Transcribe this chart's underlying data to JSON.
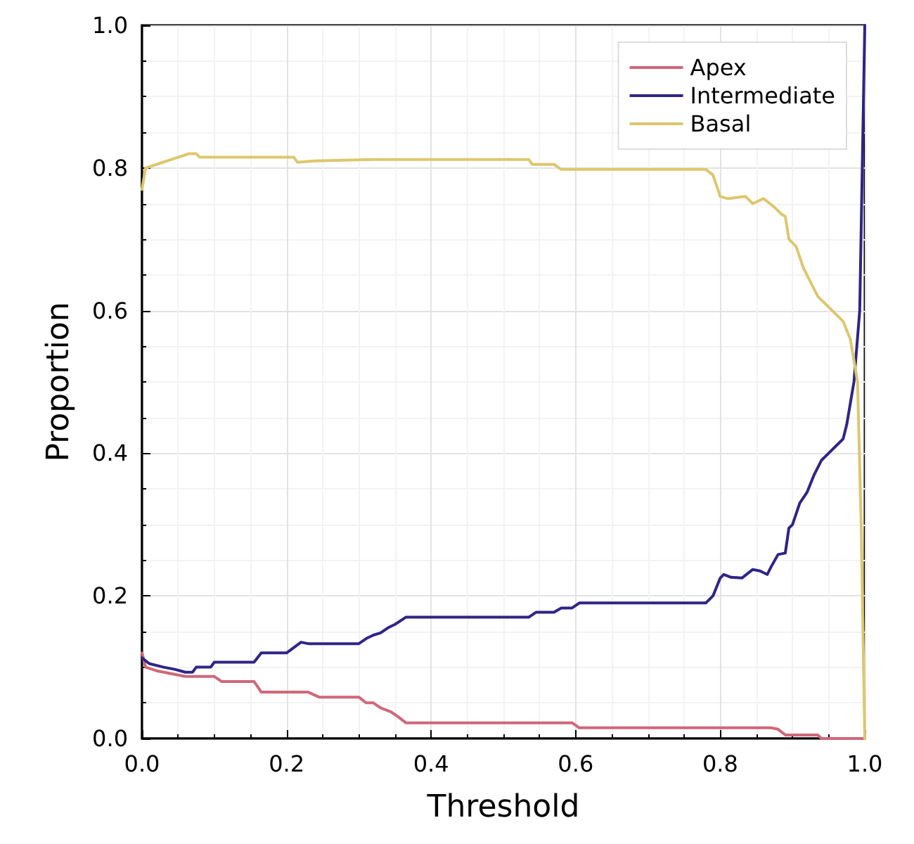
{
  "chart_data": {
    "type": "line",
    "xlabel": "Threshold",
    "ylabel": "Proportion",
    "xlim": [
      0,
      1
    ],
    "ylim": [
      0,
      1
    ],
    "xticks": [
      {
        "value": 0,
        "label": "0.0"
      },
      {
        "value": 0.2,
        "label": "0.2"
      },
      {
        "value": 0.4,
        "label": "0.4"
      },
      {
        "value": 0.6,
        "label": "0.6"
      },
      {
        "value": 0.8,
        "label": "0.8"
      },
      {
        "value": 1,
        "label": "1.0"
      }
    ],
    "yticks": [
      {
        "value": 0,
        "label": "0.0"
      },
      {
        "value": 0.2,
        "label": "0.2"
      },
      {
        "value": 0.4,
        "label": "0.4"
      },
      {
        "value": 0.6,
        "label": "0.6"
      },
      {
        "value": 0.8,
        "label": "0.8"
      },
      {
        "value": 1,
        "label": "1.0"
      }
    ],
    "grid": true,
    "legend": "top right",
    "line_style": "solid",
    "marker": "none",
    "series": [
      {
        "name": "Apex",
        "color": "#d0677a",
        "x": [
          0,
          0.005,
          0.02,
          0.03,
          0.045,
          0.06,
          0.1,
          0.11,
          0.155,
          0.165,
          0.23,
          0.245,
          0.3,
          0.31,
          0.32,
          0.33,
          0.345,
          0.355,
          0.365,
          0.595,
          0.605,
          0.87,
          0.88,
          0.89,
          0.935,
          0.94,
          1
        ],
        "values": [
          0.12,
          0.1,
          0.095,
          0.093,
          0.09,
          0.087,
          0.087,
          0.08,
          0.08,
          0.065,
          0.065,
          0.058,
          0.058,
          0.05,
          0.05,
          0.043,
          0.037,
          0.03,
          0.022,
          0.022,
          0.015,
          0.015,
          0.013,
          0.005,
          0.005,
          0,
          0
        ]
      },
      {
        "name": "Intermediate",
        "color": "#2e2586",
        "x": [
          0,
          0.01,
          0.03,
          0.045,
          0.06,
          0.07,
          0.075,
          0.095,
          0.1,
          0.155,
          0.165,
          0.2,
          0.22,
          0.23,
          0.3,
          0.31,
          0.32,
          0.33,
          0.34,
          0.35,
          0.365,
          0.535,
          0.545,
          0.57,
          0.58,
          0.595,
          0.605,
          0.78,
          0.79,
          0.8,
          0.805,
          0.815,
          0.83,
          0.845,
          0.855,
          0.865,
          0.87,
          0.88,
          0.89,
          0.895,
          0.9,
          0.91,
          0.92,
          0.93,
          0.94,
          0.95,
          0.96,
          0.97,
          0.975,
          0.985,
          0.993,
          1
        ],
        "values": [
          0.113,
          0.105,
          0.1,
          0.097,
          0.093,
          0.093,
          0.1,
          0.1,
          0.107,
          0.107,
          0.12,
          0.12,
          0.135,
          0.133,
          0.133,
          0.14,
          0.145,
          0.148,
          0.155,
          0.16,
          0.17,
          0.17,
          0.177,
          0.177,
          0.183,
          0.183,
          0.19,
          0.19,
          0.2,
          0.225,
          0.23,
          0.226,
          0.225,
          0.237,
          0.235,
          0.23,
          0.24,
          0.258,
          0.26,
          0.295,
          0.3,
          0.33,
          0.345,
          0.37,
          0.39,
          0.4,
          0.41,
          0.42,
          0.44,
          0.5,
          0.6,
          1
        ]
      },
      {
        "name": "Basal",
        "color": "#ddc76e",
        "x": [
          0,
          0.005,
          0.02,
          0.035,
          0.05,
          0.065,
          0.075,
          0.08,
          0.21,
          0.215,
          0.24,
          0.32,
          0.535,
          0.54,
          0.57,
          0.58,
          0.78,
          0.79,
          0.8,
          0.81,
          0.835,
          0.845,
          0.86,
          0.875,
          0.885,
          0.89,
          0.895,
          0.905,
          0.915,
          0.925,
          0.935,
          0.945,
          0.955,
          0.97,
          0.98,
          0.99,
          0.995,
          1
        ],
        "values": [
          0.77,
          0.8,
          0.805,
          0.81,
          0.815,
          0.82,
          0.82,
          0.815,
          0.815,
          0.808,
          0.81,
          0.812,
          0.812,
          0.805,
          0.805,
          0.798,
          0.798,
          0.79,
          0.76,
          0.757,
          0.76,
          0.75,
          0.757,
          0.745,
          0.735,
          0.732,
          0.7,
          0.69,
          0.66,
          0.64,
          0.62,
          0.61,
          0.6,
          0.585,
          0.56,
          0.5,
          0.3,
          0
        ]
      }
    ]
  }
}
